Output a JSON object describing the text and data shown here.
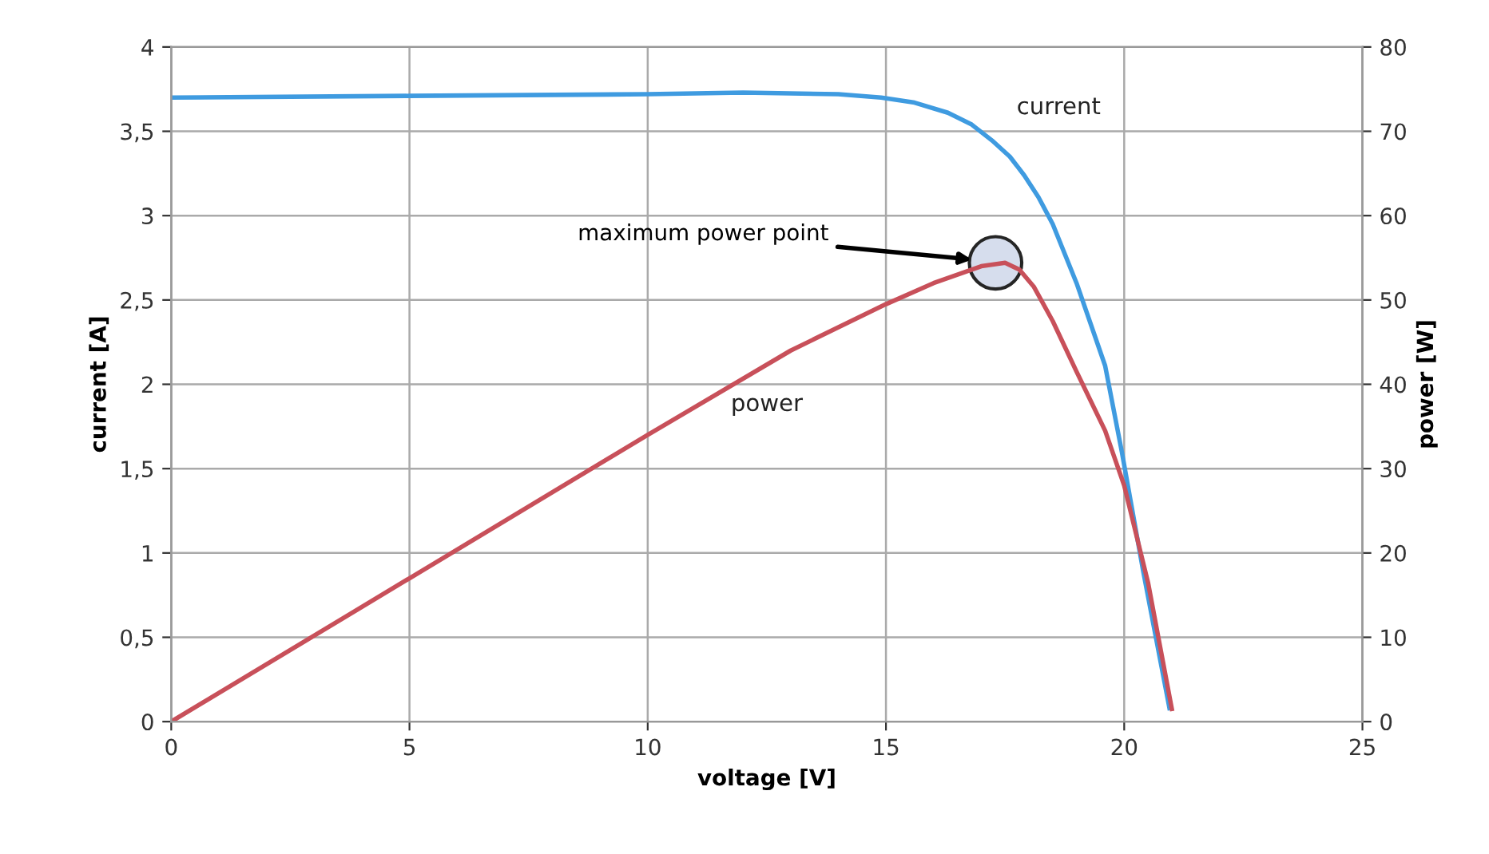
{
  "chart_data": {
    "type": "line",
    "xlabel": "voltage [V]",
    "ylabel": "current [A]",
    "y2label": "power [W]",
    "xlim": [
      0,
      25
    ],
    "xticks": [
      0,
      5,
      10,
      15,
      20,
      25
    ],
    "ylim": [
      0,
      4
    ],
    "yticks": [
      0,
      {
        "value": 0.5,
        "label": "0,5"
      },
      1,
      {
        "value": 1.5,
        "label": "1,5"
      },
      2,
      {
        "value": 2.5,
        "label": "2,5"
      },
      3,
      {
        "value": 3.5,
        "label": "3,5"
      },
      4
    ],
    "y2lim": [
      0,
      80
    ],
    "y2ticks": [
      0,
      10,
      20,
      30,
      40,
      50,
      60,
      70,
      80
    ],
    "grid": true,
    "marker": "none",
    "line_style": "solid",
    "series": [
      {
        "name": "current",
        "color": "#3f9be0",
        "x": [
          0,
          5,
          10,
          12,
          14,
          14.9,
          15.6,
          16.3,
          16.8,
          17.25,
          17.6,
          17.9,
          18.2,
          18.5,
          19.0,
          19.6,
          19.95,
          20.4,
          20.95
        ],
        "values": [
          3.7,
          3.71,
          3.72,
          3.73,
          3.72,
          3.7,
          3.67,
          3.61,
          3.54,
          3.44,
          3.35,
          3.24,
          3.11,
          2.95,
          2.6,
          2.11,
          1.6,
          0.89,
          0.08
        ]
      },
      {
        "name": "power",
        "color": "#c8505a",
        "axis": "y2",
        "x": [
          0,
          5,
          10,
          13,
          15,
          16,
          17,
          17.5,
          17.8,
          18.1,
          18.5,
          19,
          19.6,
          20,
          20.5,
          21
        ],
        "values": [
          0,
          17,
          34,
          44,
          49.5,
          52,
          54,
          54.4,
          53.6,
          51.6,
          47.5,
          41.5,
          34.5,
          28,
          16.5,
          1.5
        ]
      }
    ],
    "annotations": [
      {
        "text": "maximum power point",
        "x": 16.8,
        "y": 2.74
      }
    ]
  }
}
